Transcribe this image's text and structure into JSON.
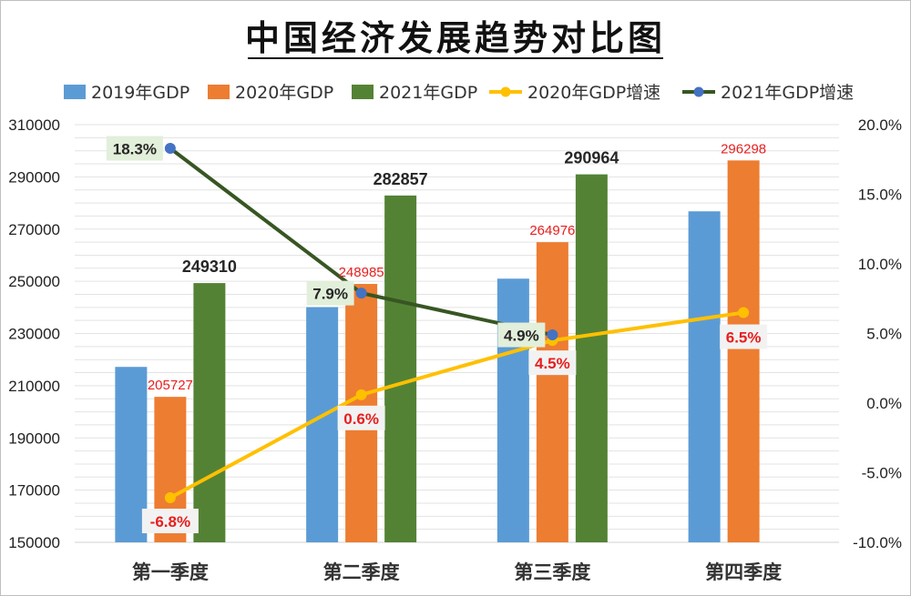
{
  "chart_data": {
    "type": "bar",
    "title": "中国经济发展趋势对比图",
    "categories": [
      "第一季度",
      "第二季度",
      "第三季度",
      "第四季度"
    ],
    "series": [
      {
        "name": "2019年GDP",
        "kind": "bar",
        "color": "#5B9BD5",
        "values": [
          217200,
          240100,
          251000,
          276800
        ]
      },
      {
        "name": "2020年GDP",
        "kind": "bar",
        "color": "#ED7D31",
        "values": [
          205727,
          248985,
          264976,
          296298
        ],
        "labels": [
          "205727",
          "248985",
          "264976",
          "296298"
        ]
      },
      {
        "name": "2021年GDP",
        "kind": "bar",
        "color": "#548235",
        "values": [
          249310,
          282857,
          290964,
          null
        ],
        "labels": [
          "249310",
          "282857",
          "290964",
          ""
        ]
      },
      {
        "name": "2020年GDP增速",
        "kind": "line",
        "axis": "right",
        "color": "#FFC000",
        "values": [
          -6.8,
          0.6,
          4.5,
          6.5
        ],
        "labels": [
          "-6.8%",
          "0.6%",
          "4.5%",
          "6.5%"
        ]
      },
      {
        "name": "2021年GDP增速",
        "kind": "line",
        "axis": "right",
        "color": "#375623",
        "markerColor": "#4472C4",
        "values": [
          18.3,
          7.9,
          4.9,
          null
        ],
        "labels": [
          "18.3%",
          "7.9%",
          "4.9%",
          ""
        ]
      }
    ],
    "ylim": [
      150000,
      310000
    ],
    "yticks": [
      "310000",
      "290000",
      "270000",
      "250000",
      "230000",
      "210000",
      "190000",
      "170000",
      "150000"
    ],
    "y2lim": [
      -10,
      20
    ],
    "y2ticks": [
      "20.0%",
      "15.0%",
      "10.0%",
      "5.0%",
      "0.0%",
      "-5.0%",
      "-10.0%"
    ],
    "grid": true,
    "legend": "top"
  }
}
